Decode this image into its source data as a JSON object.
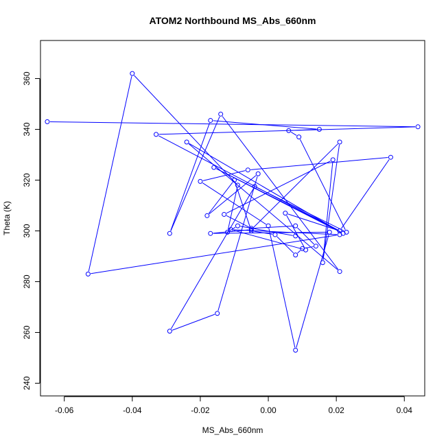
{
  "chart_data": {
    "type": "line",
    "title": "ATOM2 Northbound MS_Abs_660nm",
    "xlabel": "MS_Abs_660nm",
    "ylabel": "Theta (K)",
    "xlim": [
      -0.067,
      0.046
    ],
    "ylim": [
      235,
      375
    ],
    "x_ticks": [
      -0.06,
      -0.04,
      -0.02,
      0.0,
      0.02,
      0.04
    ],
    "x_tick_labels": [
      "-0.06",
      "-0.04",
      "-0.02",
      "0.00",
      "0.02",
      "0.04"
    ],
    "y_ticks": [
      240,
      260,
      280,
      300,
      320,
      340,
      360
    ],
    "y_tick_labels": [
      "240",
      "260",
      "280",
      "300",
      "320",
      "340",
      "360"
    ],
    "grid": false,
    "series": [
      {
        "color": "#0000ff",
        "marker": "open-circle",
        "x": [
          -0.065,
          0.044,
          -0.033,
          0.021,
          -0.016,
          0.022,
          -0.024,
          0.021,
          -0.014,
          -0.029,
          -0.017,
          0.015,
          0.006,
          0.009,
          0.023,
          -0.004,
          -0.029,
          -0.015,
          -0.003,
          -0.018,
          -0.01,
          -0.005,
          0.002,
          0.008,
          0.01,
          0.014,
          0.008,
          -0.005,
          -0.013,
          0.019,
          0.016,
          0.021,
          -0.005,
          -0.017,
          0.018,
          0.008,
          0.0,
          -0.02,
          -0.006,
          0.036,
          0.021,
          0.005,
          0.011,
          -0.011,
          0.021,
          -0.053,
          -0.04,
          -0.009,
          -0.012,
          -0.009,
          0.008
        ],
        "y": [
          343,
          341,
          338,
          300,
          325,
          299,
          335,
          284,
          346,
          299,
          343.5,
          340,
          339.5,
          337,
          299.5,
          317.5,
          260.5,
          267.5,
          322.5,
          306,
          320,
          300,
          298.5,
          290.5,
          293,
          294,
          302,
          301,
          306.5,
          328,
          287.5,
          335,
          300.5,
          299,
          299.5,
          253,
          302,
          319.5,
          324,
          329,
          300,
          307,
          292.5,
          300.5,
          298.5,
          283,
          362,
          318,
          299.5,
          302,
          298
        ]
      }
    ]
  }
}
